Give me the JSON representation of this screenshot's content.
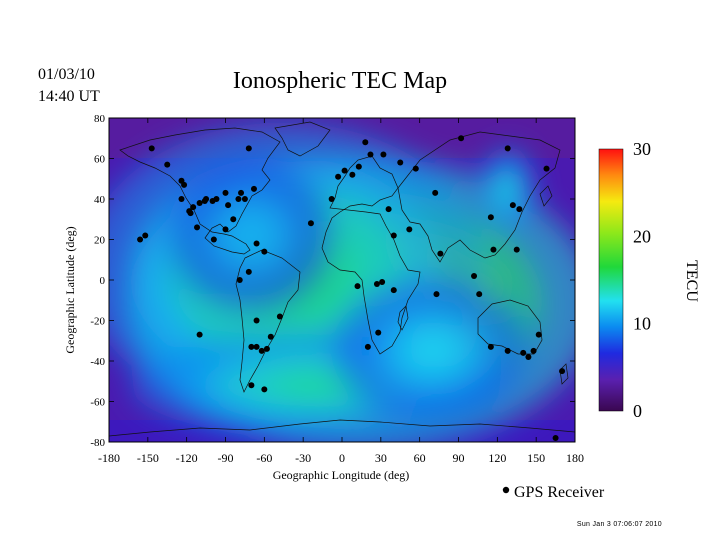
{
  "header": {
    "date": "01/03/10",
    "time": "14:40 UT",
    "title": "Ionospheric TEC Map"
  },
  "footer": {
    "stamp": "Sun Jan  3 07:06:07 2010"
  },
  "chart_data": {
    "type": "heatmap",
    "title": "Ionospheric TEC Map",
    "xlabel": "Geographic Longitude (deg)",
    "ylabel": "Geographic Latitude (deg)",
    "xlim": [
      -180,
      180
    ],
    "ylim": [
      -80,
      80
    ],
    "xticks": [
      -180,
      -150,
      -120,
      -90,
      -60,
      -30,
      0,
      30,
      60,
      90,
      120,
      150,
      180
    ],
    "yticks": [
      80,
      60,
      40,
      20,
      0,
      -20,
      -40,
      -60,
      -80
    ],
    "colorbar": {
      "label": "TECU",
      "range": [
        0,
        30
      ],
      "ticks": [
        30,
        20,
        10,
        0
      ]
    },
    "legend": {
      "label": "GPS Receiver",
      "position": "bottom-right"
    },
    "tec_blobs": [
      {
        "lon": 15,
        "lat": -12,
        "sx": 70,
        "sy": 28,
        "tec": 13
      },
      {
        "lon": 30,
        "lat": -12,
        "sx": 18,
        "sy": 10,
        "tec": 16
      },
      {
        "lon": -58,
        "lat": -12,
        "sx": 40,
        "sy": 24,
        "tec": 10
      },
      {
        "lon": -62,
        "lat": -22,
        "sx": 12,
        "sy": 14,
        "tec": 8
      },
      {
        "lon": -45,
        "lat": 5,
        "sx": 60,
        "sy": 28,
        "tec": 7
      },
      {
        "lon": -20,
        "lat": -52,
        "sx": 55,
        "sy": 10,
        "tec": 6
      },
      {
        "lon": 70,
        "lat": -35,
        "sx": 30,
        "sy": 14,
        "tec": 4
      },
      {
        "lon": -70,
        "lat": 22,
        "sx": 25,
        "sy": 15,
        "tec": 3
      },
      {
        "lon": 128,
        "lat": 45,
        "sx": 8,
        "sy": 8,
        "tec": 5
      }
    ],
    "gps_receivers": [
      [
        -147,
        65
      ],
      [
        -135,
        57
      ],
      [
        -124,
        49
      ],
      [
        -122,
        47
      ],
      [
        -118,
        34
      ],
      [
        -117,
        33
      ],
      [
        -115,
        36
      ],
      [
        -110,
        38
      ],
      [
        -105,
        40
      ],
      [
        -100,
        39
      ],
      [
        -97,
        40
      ],
      [
        -90,
        43
      ],
      [
        -80,
        40
      ],
      [
        -78,
        43
      ],
      [
        -75,
        40
      ],
      [
        -68,
        45
      ],
      [
        -72,
        65
      ],
      [
        -156,
        20
      ],
      [
        -152,
        22
      ],
      [
        -124,
        40
      ],
      [
        -106,
        39
      ],
      [
        -88,
        37
      ],
      [
        -112,
        26
      ],
      [
        -99,
        20
      ],
      [
        -90,
        25
      ],
      [
        -84,
        30
      ],
      [
        -79,
        0
      ],
      [
        -66,
        18
      ],
      [
        -60,
        14
      ],
      [
        -66,
        -20
      ],
      [
        -70,
        -33
      ],
      [
        -66,
        -33
      ],
      [
        -62,
        -35
      ],
      [
        -58,
        -34
      ],
      [
        -55,
        -28
      ],
      [
        -48,
        -18
      ],
      [
        -72,
        4
      ],
      [
        -110,
        -27
      ],
      [
        -70,
        -52
      ],
      [
        -60,
        -54
      ],
      [
        -24,
        28
      ],
      [
        -8,
        40
      ],
      [
        -3,
        51
      ],
      [
        2,
        54
      ],
      [
        8,
        52
      ],
      [
        13,
        56
      ],
      [
        18,
        68
      ],
      [
        22,
        62
      ],
      [
        32,
        62
      ],
      [
        45,
        58
      ],
      [
        57,
        55
      ],
      [
        36,
        35
      ],
      [
        40,
        22
      ],
      [
        52,
        25
      ],
      [
        72,
        43
      ],
      [
        76,
        13
      ],
      [
        73,
        -7
      ],
      [
        12,
        -3
      ],
      [
        27,
        -2
      ],
      [
        40,
        -5
      ],
      [
        20,
        -33
      ],
      [
        28,
        -26
      ],
      [
        31,
        -1
      ],
      [
        92,
        70
      ],
      [
        128,
        65
      ],
      [
        137,
        35
      ],
      [
        132,
        37
      ],
      [
        115,
        31
      ],
      [
        117,
        15
      ],
      [
        102,
        2
      ],
      [
        106,
        -7
      ],
      [
        115,
        -33
      ],
      [
        128,
        -35
      ],
      [
        140,
        -36
      ],
      [
        144,
        -38
      ],
      [
        148,
        -35
      ],
      [
        152,
        -27
      ],
      [
        158,
        55
      ],
      [
        135,
        15
      ],
      [
        170,
        -45
      ],
      [
        165,
        -78
      ]
    ]
  }
}
